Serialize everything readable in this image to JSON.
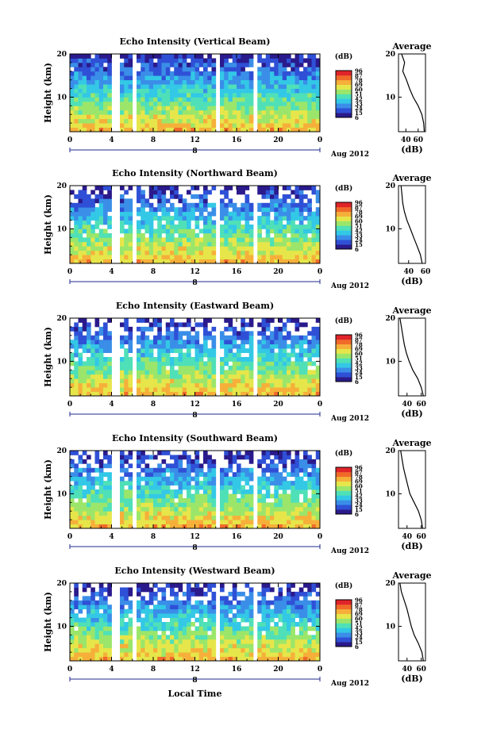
{
  "figure": {
    "xlabel": "Local Time",
    "date_label": "Aug 2012",
    "date_day": "8"
  },
  "colorbar": {
    "unit": "(dB)",
    "ticks": [
      "96",
      "87",
      "78",
      "69",
      "60",
      "51",
      "42",
      "33",
      "24",
      "15",
      "6"
    ]
  },
  "chart_data": [
    {
      "type": "heatmap",
      "title": "Echo Intensity (Vertical Beam)",
      "ylabel": "Height (km)",
      "xlim": [
        0,
        24
      ],
      "ylim": [
        2,
        20
      ],
      "xticks": [
        "0",
        "4",
        "8",
        "12",
        "16",
        "20",
        "0"
      ],
      "yticks": [
        "10",
        "20"
      ],
      "data_gaps_hours": [
        [
          4.2,
          4.6
        ],
        [
          5.9,
          6.4
        ],
        [
          14.0,
          14.3
        ],
        [
          17.8,
          18.0
        ]
      ],
      "profile": {
        "title": "Average",
        "xlabel": "(dB)",
        "xticks": [
          "40",
          "60"
        ],
        "xlim": [
          28,
          72
        ],
        "height_km": [
          2,
          4,
          6,
          8,
          10,
          12,
          14,
          16,
          18,
          20
        ],
        "values_db": [
          70,
          69,
          66,
          60,
          52,
          46,
          41,
          35,
          38,
          33
        ]
      }
    },
    {
      "type": "heatmap",
      "title": "Echo Intensity (Northward Beam)",
      "ylabel": "Height (km)",
      "xlim": [
        0,
        24
      ],
      "ylim": [
        2,
        20
      ],
      "xticks": [
        "0",
        "4",
        "8",
        "12",
        "16",
        "20",
        "0"
      ],
      "yticks": [
        "10",
        "20"
      ],
      "data_gaps_hours": [
        [
          4.2,
          4.6
        ],
        [
          5.9,
          6.4
        ],
        [
          14.0,
          14.3
        ],
        [
          17.8,
          18.0
        ]
      ],
      "profile": {
        "title": "Average",
        "xlabel": "(dB)",
        "xticks": [
          "40",
          "60"
        ],
        "xlim": [
          28,
          60
        ],
        "height_km": [
          2,
          4,
          6,
          8,
          10,
          12,
          14,
          16,
          18,
          20
        ],
        "values_db": [
          56,
          54,
          50,
          46,
          42,
          38,
          35,
          33,
          32,
          31
        ]
      }
    },
    {
      "type": "heatmap",
      "title": "Echo Intensity (Eastward Beam)",
      "ylabel": "Height (km)",
      "xlim": [
        0,
        24
      ],
      "ylim": [
        2,
        20
      ],
      "xticks": [
        "0",
        "4",
        "8",
        "12",
        "16",
        "20",
        "0"
      ],
      "yticks": [
        "10",
        "20"
      ],
      "data_gaps_hours": [
        [
          4.2,
          4.6
        ],
        [
          5.9,
          6.4
        ],
        [
          14.0,
          14.3
        ],
        [
          17.8,
          18.0
        ]
      ],
      "profile": {
        "title": "Average",
        "xlabel": "(dB)",
        "xticks": [
          "40",
          "60"
        ],
        "xlim": [
          28,
          66
        ],
        "height_km": [
          2,
          4,
          6,
          8,
          10,
          12,
          14,
          16,
          18,
          20
        ],
        "values_db": [
          63,
          60,
          55,
          48,
          43,
          39,
          36,
          34,
          32,
          30
        ]
      }
    },
    {
      "type": "heatmap",
      "title": "Echo Intensity (Southward Beam)",
      "ylabel": "Height (km)",
      "xlim": [
        0,
        24
      ],
      "ylim": [
        2,
        20
      ],
      "xticks": [
        "0",
        "4",
        "8",
        "12",
        "16",
        "20",
        "0"
      ],
      "yticks": [
        "10",
        "20"
      ],
      "data_gaps_hours": [
        [
          4.2,
          4.6
        ],
        [
          5.9,
          6.4
        ],
        [
          14.0,
          14.3
        ],
        [
          17.8,
          18.0
        ]
      ],
      "profile": {
        "title": "Average",
        "xlabel": "(dB)",
        "xticks": [
          "40",
          "60"
        ],
        "xlim": [
          28,
          66
        ],
        "height_km": [
          2,
          4,
          6,
          8,
          10,
          12,
          14,
          16,
          18,
          20
        ],
        "values_db": [
          62,
          60,
          56,
          50,
          44,
          41,
          38,
          35,
          33,
          31
        ]
      }
    },
    {
      "type": "heatmap",
      "title": "Echo Intensity (Westward Beam)",
      "ylabel": "Height (km)",
      "xlim": [
        0,
        24
      ],
      "ylim": [
        2,
        20
      ],
      "xticks": [
        "0",
        "4",
        "8",
        "12",
        "16",
        "20",
        "0"
      ],
      "yticks": [
        "10",
        "20"
      ],
      "data_gaps_hours": [
        [
          4.2,
          4.6
        ],
        [
          5.9,
          6.4
        ],
        [
          14.0,
          14.3
        ],
        [
          17.8,
          18.0
        ]
      ],
      "profile": {
        "title": "Average",
        "xlabel": "(dB)",
        "xticks": [
          "40",
          "60"
        ],
        "xlim": [
          28,
          66
        ],
        "height_km": [
          2,
          4,
          6,
          8,
          10,
          12,
          14,
          16,
          18,
          20
        ],
        "values_db": [
          63,
          61,
          56,
          50,
          46,
          43,
          40,
          36,
          32,
          30
        ]
      }
    }
  ],
  "colors": {
    "colormap": [
      "#2a1a8c",
      "#2f50d6",
      "#3a8ee8",
      "#33c8e6",
      "#4fe0b8",
      "#9be66a",
      "#e6e64a",
      "#f6b03a",
      "#f06a2a",
      "#e0242a"
    ]
  }
}
